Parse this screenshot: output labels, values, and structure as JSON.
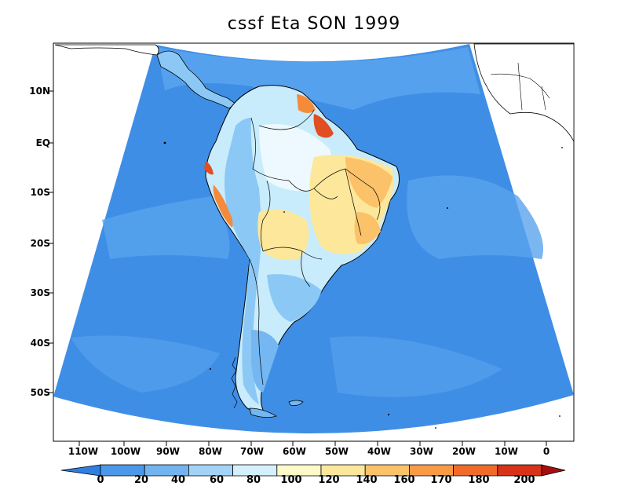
{
  "title": "cssf Eta SON 1999",
  "colors": {
    "ocean": "#3f8ee6",
    "ocean_light": "#5aa4ee",
    "ocean_pale": "#74b7f2",
    "land_low": "#8cc8f5",
    "land_mid": "#c8ecfc",
    "land_pale": "#eef9ff",
    "yellow": "#fde79a",
    "orange_light": "#fcc26a",
    "orange": "#f48a3a",
    "red": "#e04e22",
    "dark_red": "#b71010",
    "outline": "#000000"
  },
  "lat_labels": [
    "10N",
    "EQ",
    "10S",
    "20S",
    "30S",
    "40S",
    "50S"
  ],
  "lon_labels": [
    "110W",
    "100W",
    "90W",
    "80W",
    "70W",
    "60W",
    "50W",
    "40W",
    "30W",
    "20W",
    "10W",
    "0"
  ],
  "colorbar": {
    "labels": [
      "0",
      "20",
      "40",
      "60",
      "80",
      "100",
      "120",
      "140",
      "160",
      "170",
      "180",
      "200"
    ],
    "colors": [
      "#2f7fe0",
      "#4a98ea",
      "#72b4f1",
      "#a3d4f8",
      "#d4f0fc",
      "#fffac8",
      "#fde79a",
      "#fcc26a",
      "#f99a45",
      "#f06a2a",
      "#d83218",
      "#a50f0f"
    ]
  }
}
